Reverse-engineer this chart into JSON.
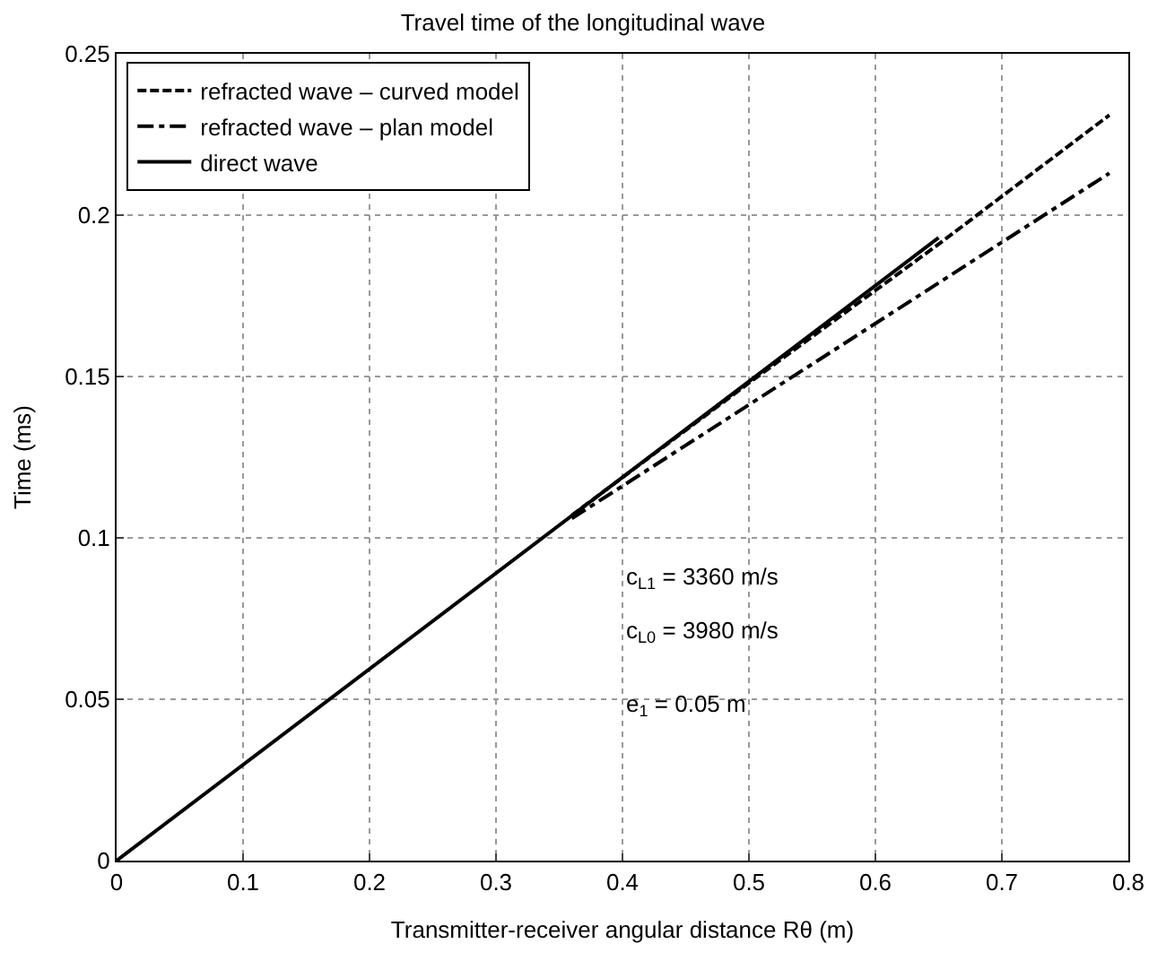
{
  "chart_data": {
    "type": "line",
    "title": "Travel time of the longitudinal wave",
    "xlabel": "Transmitter-receiver angular distance Rθ (m)",
    "ylabel": "Time (ms)",
    "series": [
      {
        "name": "refracted wave – curved model",
        "color": "#000000",
        "line_style": "dashed",
        "x": [
          0.36,
          0.5,
          0.65,
          0.785
        ],
        "values": [
          0.107,
          0.148,
          0.191,
          0.231
        ]
      },
      {
        "name": "refracted wave – plan model",
        "color": "#000000",
        "line_style": "dashdot",
        "x": [
          0.36,
          0.785
        ],
        "values": [
          0.106,
          0.213
        ]
      },
      {
        "name": "direct wave",
        "color": "#000000",
        "line_style": "solid",
        "x": [
          0,
          0.65
        ],
        "values": [
          0,
          0.193
        ]
      }
    ],
    "xlim": [
      0,
      0.8
    ],
    "xticks": [
      0,
      0.1,
      0.2,
      0.3,
      0.4,
      0.5,
      0.6,
      0.7,
      0.8
    ],
    "ylim": [
      0,
      0.25
    ],
    "yticks": [
      0,
      0.05,
      0.1,
      0.15,
      0.2,
      0.25
    ],
    "grid": true,
    "legend": "top left",
    "marker": "none",
    "annotations": [
      "c$_{L1}$ = 3360 m/s",
      "c$_{L0}$ = 3980 m/s",
      "e$_{1}$ = 0.05 m"
    ]
  }
}
